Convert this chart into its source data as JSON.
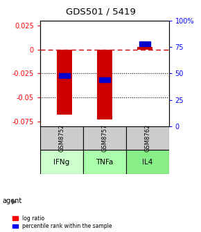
{
  "title": "GDS501 / 5419",
  "samples": [
    "GSM8752",
    "GSM8757",
    "GSM8762"
  ],
  "agents": [
    "IFNg",
    "TNFa",
    "IL4"
  ],
  "log_ratios": [
    -0.068,
    -0.073,
    0.003
  ],
  "percentile_ranks": [
    0.48,
    0.44,
    0.78
  ],
  "ylim_left": [
    -0.08,
    0.03
  ],
  "ylim_right": [
    0.0,
    1.0
  ],
  "yticks_left": [
    0.025,
    0.0,
    -0.025,
    -0.05,
    -0.075
  ],
  "yticks_right": [
    1.0,
    0.75,
    0.5,
    0.25,
    0.0
  ],
  "ytick_labels_left": [
    "0.025",
    "0",
    "-0.025",
    "-0.05",
    "-0.075"
  ],
  "ytick_labels_right": [
    "100%",
    "75",
    "50",
    "25",
    "0"
  ],
  "bar_color": "#cc0000",
  "rank_color": "#0000cc",
  "zero_line_color": "#cc0000",
  "sample_bg_color": "#cccccc",
  "agent_colors": [
    "#ccffcc",
    "#aaffaa",
    "#88ee88"
  ]
}
